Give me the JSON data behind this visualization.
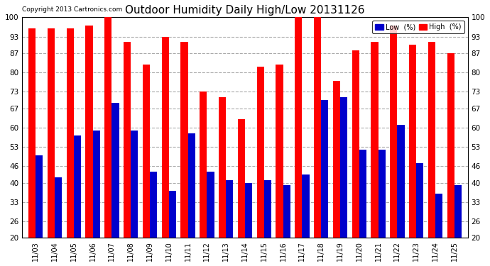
{
  "title": "Outdoor Humidity Daily High/Low 20131126",
  "copyright": "Copyright 2013 Cartronics.com",
  "dates": [
    "11/03",
    "11/04",
    "11/05",
    "11/06",
    "11/07",
    "11/08",
    "11/09",
    "11/10",
    "11/11",
    "11/12",
    "11/13",
    "11/14",
    "11/15",
    "11/16",
    "11/17",
    "11/18",
    "11/19",
    "11/20",
    "11/21",
    "11/22",
    "11/23",
    "11/24",
    "11/25"
  ],
  "high": [
    96,
    96,
    96,
    97,
    100,
    91,
    83,
    93,
    91,
    73,
    71,
    63,
    82,
    83,
    100,
    100,
    77,
    88,
    91,
    97,
    90,
    91,
    87
  ],
  "low": [
    50,
    42,
    57,
    59,
    69,
    59,
    44,
    37,
    58,
    44,
    41,
    40,
    41,
    39,
    43,
    70,
    71,
    52,
    52,
    61,
    47,
    36,
    39
  ],
  "ylim": [
    20,
    100
  ],
  "yticks": [
    20,
    26,
    33,
    40,
    46,
    53,
    60,
    67,
    73,
    80,
    87,
    93,
    100
  ],
  "bg_color": "#ffffff",
  "high_color": "#ff0000",
  "low_color": "#0000cc",
  "grid_color": "#aaaaaa",
  "bar_width": 0.38,
  "figsize": [
    6.9,
    3.75
  ],
  "dpi": 100
}
